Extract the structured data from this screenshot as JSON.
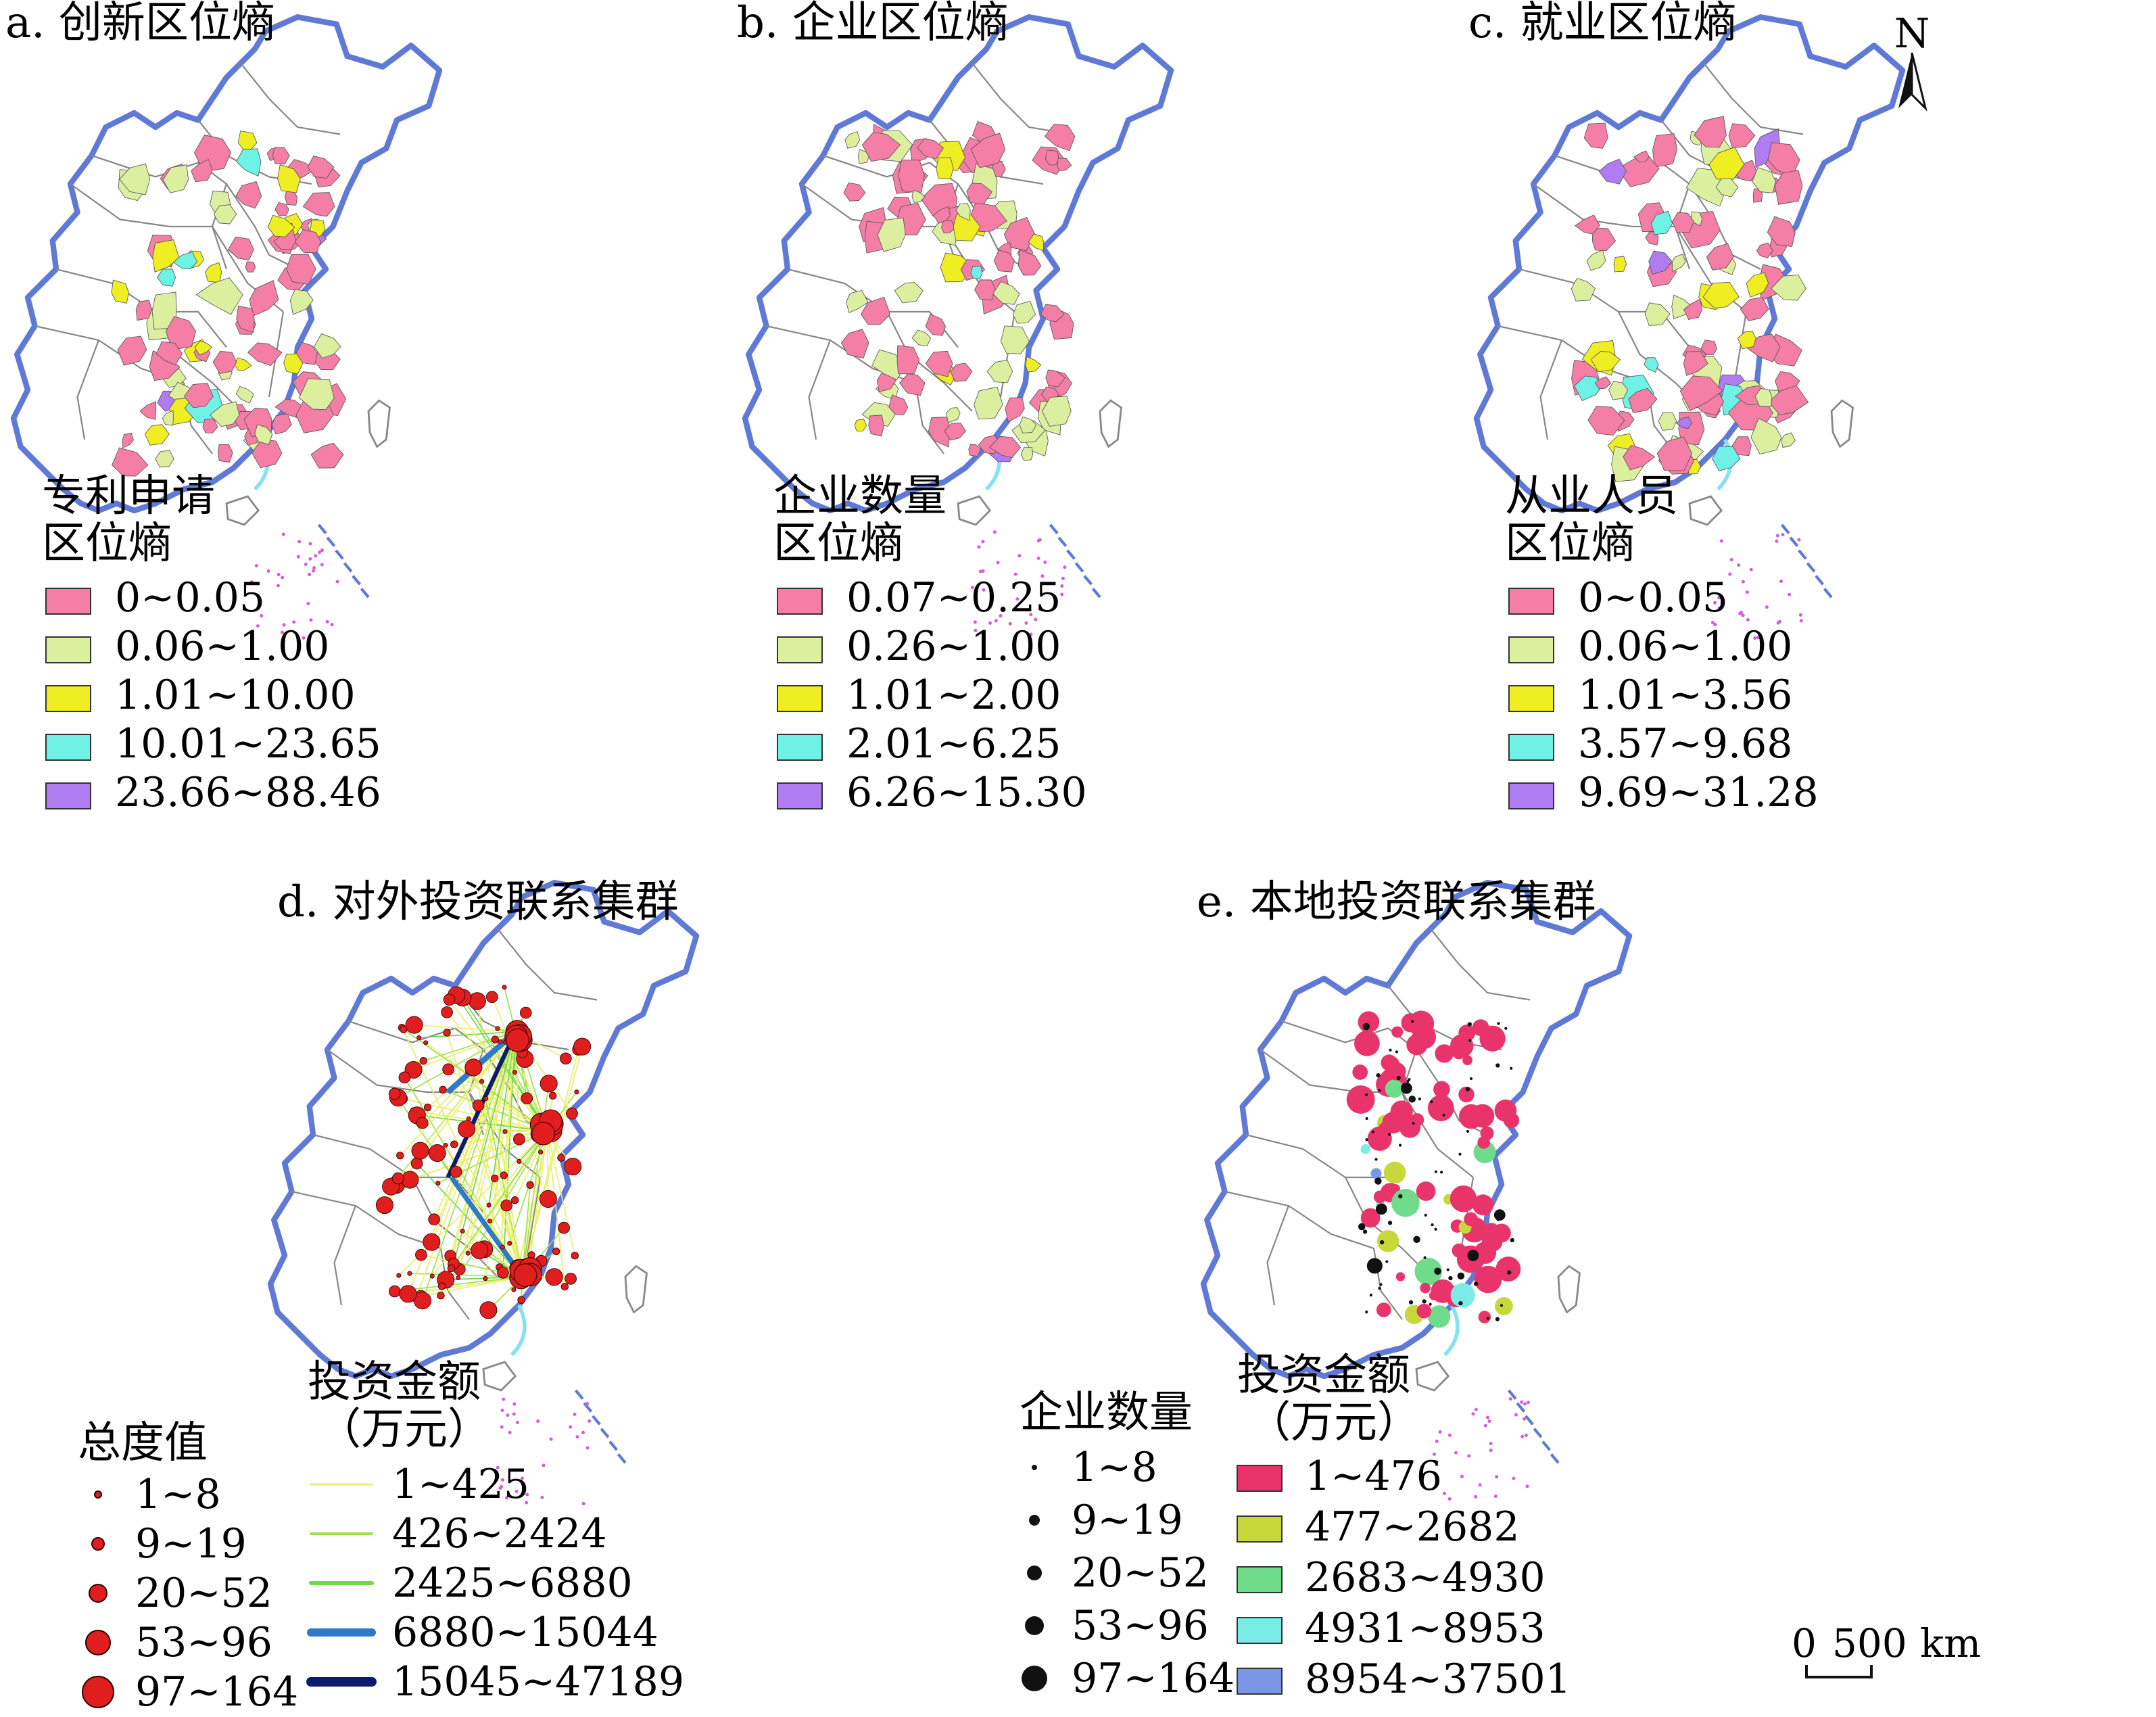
{
  "panels": [
    {
      "id": "a",
      "title": "a. 创新区位熵",
      "legend_title": [
        "专利申请",
        "区位熵"
      ],
      "legend": [
        "0~0.05",
        "0.06~1.00",
        "1.01~10.00",
        "10.01~23.65",
        "23.66~88.46"
      ]
    },
    {
      "id": "b",
      "title": "b. 企业区位熵",
      "legend_title": [
        "企业数量",
        "区位熵"
      ],
      "legend": [
        "0.07~0.25",
        "0.26~1.00",
        "1.01~2.00",
        "2.01~6.25",
        "6.26~15.30"
      ]
    },
    {
      "id": "c",
      "title": "c. 就业区位熵",
      "legend_title": [
        "从业人员",
        "区位熵"
      ],
      "legend": [
        "0~0.05",
        "0.06~1.00",
        "1.01~3.56",
        "3.57~9.68",
        "9.69~31.28"
      ]
    },
    {
      "id": "d",
      "title": "d. 对外投资联系集群",
      "node_legend_title": "总度值",
      "node_legend": [
        "1~8",
        "9~19",
        "20~52",
        "53~96",
        "97~164"
      ],
      "line_legend_title": [
        "投资金额",
        "（万元）"
      ],
      "line_legend": [
        "1~425",
        "426~2424",
        "2425~6880",
        "6880~15044",
        "15045~47189"
      ]
    },
    {
      "id": "e",
      "title": "e. 本地投资联系集群",
      "node_legend_title": "企业数量",
      "node_legend": [
        "1~8",
        "9~19",
        "20~52",
        "53~96",
        "97~164"
      ],
      "fill_legend_title": [
        "投资金额",
        "（万元）"
      ],
      "fill_legend": [
        "1~476",
        "477~2682",
        "2683~4930",
        "4931~8953",
        "8954~37501"
      ]
    }
  ],
  "north_label": "N",
  "scale_bar": {
    "zero": "0",
    "value": "500",
    "unit": "km"
  },
  "colors": {
    "entropy_classes": [
      "#f47ea5",
      "#dcef9e",
      "#eeee22",
      "#6ff2e6",
      "#b07cf2"
    ],
    "line_classes": [
      "#eaef6a",
      "#9fe14a",
      "#6fd84b",
      "#2f79c7",
      "#0d1a6e"
    ],
    "fill_classes": [
      "#e8336b",
      "#c6d83a",
      "#6fdc8c",
      "#7bebe5",
      "#7b96e6"
    ],
    "node_fill_d": "#e01e1e",
    "node_fill_e": "#111111",
    "border_blue": "#5f7ad6",
    "province_line": "#888888",
    "coast_cyan": "#86e3ee",
    "island_pink": "#d25fd5"
  },
  "icons": {
    "north_arrow": "north-arrow-icon"
  }
}
